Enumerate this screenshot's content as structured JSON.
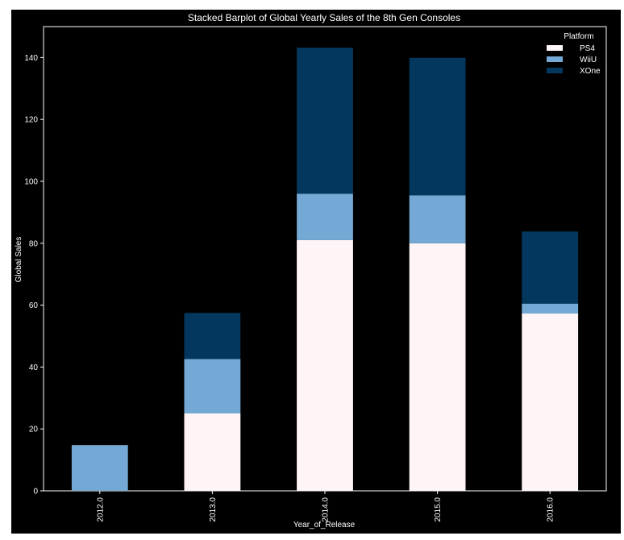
{
  "chart_data": {
    "type": "bar",
    "stacked": true,
    "title": "Stacked Barplot of Global Yearly Sales of the 8th Gen Consoles",
    "xlabel": "Year_of_Release",
    "ylabel": "Global Sales",
    "categories": [
      "2012.0",
      "2013.0",
      "2014.0",
      "2015.0",
      "2016.0"
    ],
    "series": [
      {
        "name": "PS4",
        "color": "#fff5f7",
        "values": [
          0,
          25.0,
          81.0,
          80.0,
          57.3
        ]
      },
      {
        "name": "WiiU",
        "color": "#73a9d4",
        "values": [
          14.8,
          17.6,
          15.0,
          15.5,
          3.2
        ]
      },
      {
        "name": "XOne",
        "color": "#03375e",
        "values": [
          0,
          14.9,
          47.2,
          44.4,
          23.3
        ]
      }
    ],
    "ylim": [
      0,
      150
    ],
    "yticks": [
      0,
      20,
      40,
      60,
      80,
      100,
      120,
      140
    ],
    "legend": {
      "title": "Platform",
      "position": "top-right"
    },
    "grid": false,
    "background": "#000000",
    "axis_color": "#ffffff"
  }
}
